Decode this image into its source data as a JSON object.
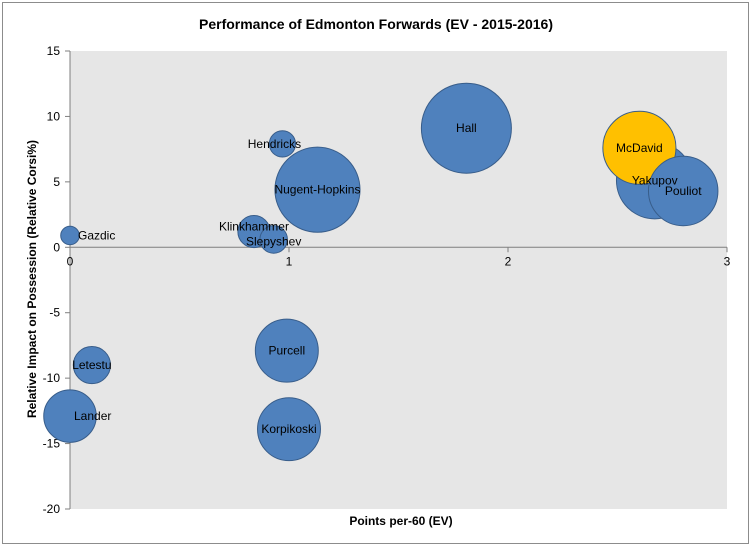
{
  "chart_data": {
    "type": "bubble",
    "title": "Performance  of  Edmonton  Forwards  (EV  -  2015-2016)",
    "xlabel": "Points per-60 (EV)",
    "ylabel": "Relative Impact on Possession (Relative Corsi%)",
    "xlim": [
      0,
      3
    ],
    "ylim": [
      -20,
      15
    ],
    "x_ticks": [
      0,
      1,
      2,
      3
    ],
    "y_ticks": [
      15,
      10,
      5,
      0,
      -5,
      -10,
      -15,
      -20
    ],
    "grid": false,
    "legend": "none",
    "colors": {
      "default": "#4f81bd",
      "highlight": "#ffc000",
      "plot_bg": "#e6e6e6",
      "bubble_edge": "#385d8a"
    },
    "points": [
      {
        "name": "Gazdic",
        "x": 0.0,
        "y": 0.9,
        "size": 1.0,
        "highlight": false
      },
      {
        "name": "Hendricks",
        "x": 0.97,
        "y": 7.9,
        "size": 2.0,
        "highlight": false
      },
      {
        "name": "Nugent-Hopkins",
        "x": 1.13,
        "y": 4.4,
        "size": 21.0,
        "highlight": false
      },
      {
        "name": "Klinkhammer",
        "x": 0.84,
        "y": 1.2,
        "size": 3.0,
        "highlight": false
      },
      {
        "name": "Slepyshev",
        "x": 0.93,
        "y": 0.6,
        "size": 2.2,
        "highlight": false
      },
      {
        "name": "Hall",
        "x": 1.81,
        "y": 9.1,
        "size": 23.5,
        "highlight": false
      },
      {
        "name": "McDavid",
        "x": 2.6,
        "y": 7.6,
        "size": 15.5,
        "highlight": true
      },
      {
        "name": "Yakupov",
        "x": 2.67,
        "y": 5.1,
        "size": 17.0,
        "highlight": false
      },
      {
        "name": "Pouliot",
        "x": 2.8,
        "y": 4.3,
        "size": 14.0,
        "highlight": false
      },
      {
        "name": "Letestu",
        "x": 0.1,
        "y": -9.0,
        "size": 4.0,
        "highlight": false
      },
      {
        "name": "Lander",
        "x": 0.0,
        "y": -12.9,
        "size": 8.0,
        "highlight": false
      },
      {
        "name": "Purcell",
        "x": 0.99,
        "y": -7.9,
        "size": 11.5,
        "highlight": false
      },
      {
        "name": "Korpikoski",
        "x": 1.0,
        "y": -13.9,
        "size": 11.5,
        "highlight": false
      }
    ]
  }
}
